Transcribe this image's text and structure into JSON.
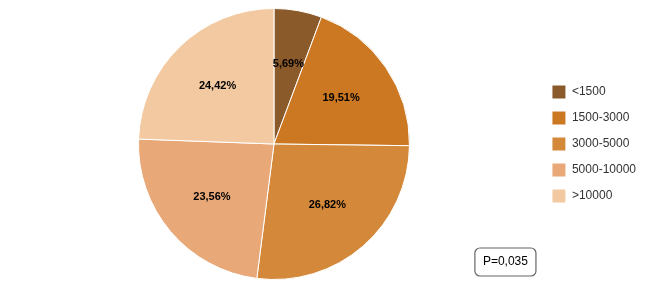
{
  "chart_data": {
    "type": "pie",
    "categories": [
      "<1500",
      "1500-3000",
      "3000-5000",
      "5000-10000",
      ">10000"
    ],
    "values": [
      5.69,
      19.51,
      26.82,
      23.56,
      24.42
    ],
    "value_labels": [
      "5,69%",
      "19,51%",
      "26,82%",
      "23,56%",
      "24,42%"
    ],
    "colors": [
      "#8B5A2B",
      "#CC7722",
      "#D4893A",
      "#E8A878",
      "#F2C9A0"
    ],
    "data_labels": true,
    "legend": "right",
    "annotations": [
      "P=0,035"
    ]
  }
}
